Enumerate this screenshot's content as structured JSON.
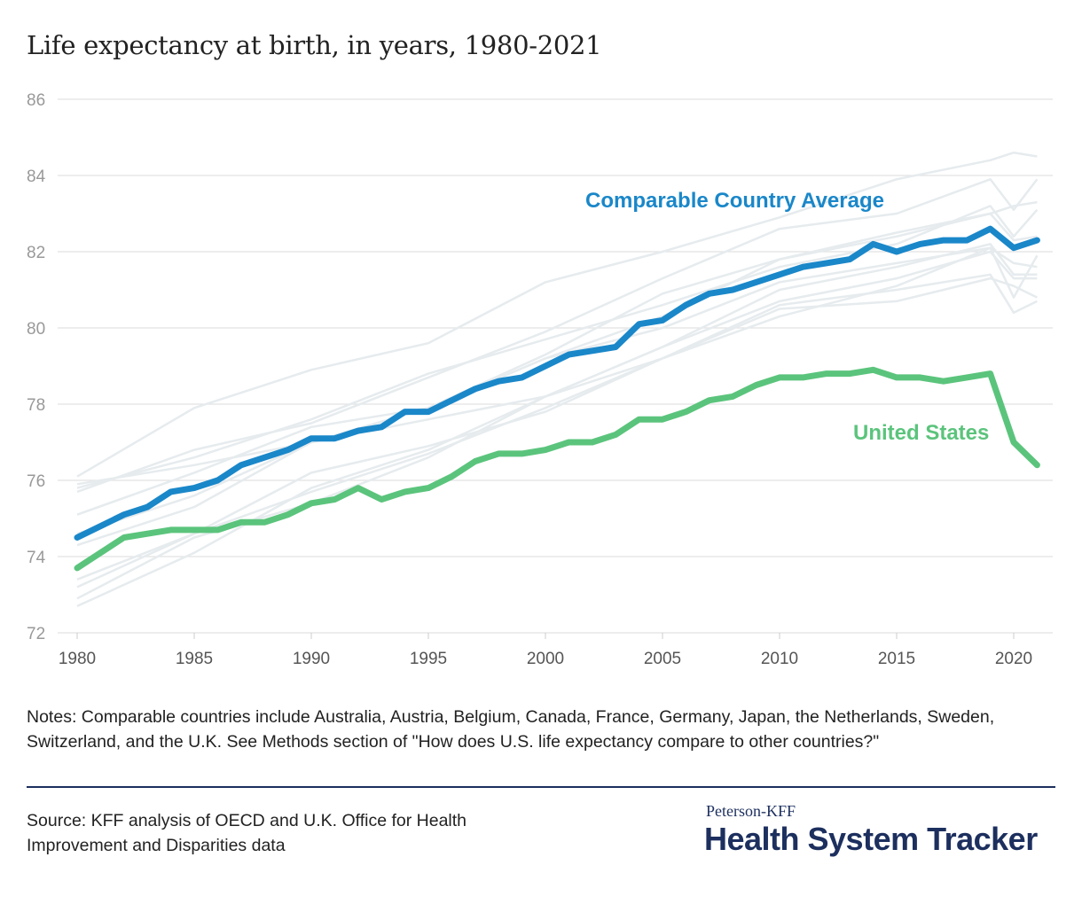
{
  "title": "Life expectancy at birth, in years, 1980-2021",
  "chart_data": {
    "type": "line",
    "title": "Life expectancy at birth, in years, 1980-2021",
    "xlabel": "",
    "ylabel": "",
    "xlim": [
      1980,
      2021
    ],
    "ylim": [
      72,
      86
    ],
    "x_ticks": [
      1980,
      1985,
      1990,
      1995,
      2000,
      2005,
      2010,
      2015,
      2020
    ],
    "y_ticks": [
      72,
      74,
      76,
      78,
      80,
      82,
      84,
      86
    ],
    "grid": true,
    "colors": {
      "comparable": "#1a87c9",
      "us": "#5bc47c",
      "countries": "#e6ebee",
      "grid": "#e2e2e2"
    },
    "x": [
      1980,
      1981,
      1982,
      1983,
      1984,
      1985,
      1986,
      1987,
      1988,
      1989,
      1990,
      1991,
      1992,
      1993,
      1994,
      1995,
      1996,
      1997,
      1998,
      1999,
      2000,
      2001,
      2002,
      2003,
      2004,
      2005,
      2006,
      2007,
      2008,
      2009,
      2010,
      2011,
      2012,
      2013,
      2014,
      2015,
      2016,
      2017,
      2018,
      2019,
      2020,
      2021
    ],
    "series": [
      {
        "name": "Comparable Country Average",
        "values": [
          74.5,
          74.8,
          75.1,
          75.3,
          75.7,
          75.8,
          76.0,
          76.4,
          76.6,
          76.8,
          77.1,
          77.1,
          77.3,
          77.4,
          77.8,
          77.8,
          78.1,
          78.4,
          78.6,
          78.7,
          79.0,
          79.3,
          79.4,
          79.5,
          80.1,
          80.2,
          80.6,
          80.9,
          81.0,
          81.2,
          81.4,
          81.6,
          81.7,
          81.8,
          82.2,
          82.0,
          82.2,
          82.3,
          82.3,
          82.6,
          82.1,
          82.3
        ]
      },
      {
        "name": "United States",
        "values": [
          73.7,
          74.1,
          74.5,
          74.6,
          74.7,
          74.7,
          74.7,
          74.9,
          74.9,
          75.1,
          75.4,
          75.5,
          75.8,
          75.5,
          75.7,
          75.8,
          76.1,
          76.5,
          76.7,
          76.7,
          76.8,
          77.0,
          77.0,
          77.2,
          77.6,
          77.6,
          77.8,
          78.1,
          78.2,
          78.5,
          78.7,
          78.7,
          78.8,
          78.8,
          78.9,
          78.7,
          78.7,
          78.6,
          78.7,
          78.8,
          77.0,
          76.4
        ]
      }
    ],
    "background_series_years": [
      1980,
      1985,
      1990,
      1995,
      2000,
      2005,
      2010,
      2015,
      2019,
      2020,
      2021
    ],
    "background_series": [
      [
        76.1,
        77.9,
        78.9,
        79.6,
        81.2,
        82.0,
        82.9,
        83.9,
        84.4,
        84.6,
        84.5
      ],
      [
        75.7,
        76.8,
        77.5,
        78.7,
        79.9,
        81.3,
        82.6,
        83.0,
        83.9,
        83.1,
        83.9
      ],
      [
        74.6,
        75.6,
        77.0,
        77.9,
        79.3,
        80.9,
        81.8,
        82.5,
        83.0,
        83.2,
        83.3
      ],
      [
        75.8,
        76.6,
        77.6,
        78.8,
        79.7,
        80.6,
        81.6,
        82.2,
        83.2,
        82.4,
        83.1
      ],
      [
        74.3,
        75.3,
        77.0,
        77.9,
        79.2,
        80.3,
        81.8,
        82.4,
        83.0,
        82.3,
        82.4
      ],
      [
        75.1,
        76.2,
        77.4,
        77.9,
        79.2,
        80.0,
        81.2,
        81.7,
        82.1,
        81.7,
        81.6
      ],
      [
        75.9,
        76.4,
        77.0,
        77.6,
        78.2,
        79.5,
        81.0,
        81.6,
        82.2,
        81.4,
        81.4
      ],
      [
        73.4,
        74.6,
        76.2,
        76.9,
        77.8,
        79.2,
        80.3,
        81.1,
        82.1,
        80.8,
        81.9
      ],
      [
        72.7,
        74.1,
        75.8,
        76.8,
        78.2,
        79.5,
        80.7,
        81.3,
        82.0,
        81.3,
        81.3
      ],
      [
        72.9,
        74.5,
        75.4,
        76.6,
        78.2,
        79.2,
        80.5,
        80.7,
        81.3,
        81.1,
        80.8
      ],
      [
        73.2,
        74.6,
        75.7,
        76.7,
        77.9,
        79.2,
        80.6,
        81.0,
        81.4,
        80.4,
        80.7
      ]
    ],
    "annotations": [
      "Comparable Country Average",
      "United States"
    ]
  },
  "notes": "Notes: Comparable countries include Australia, Austria, Belgium, Canada, France, Germany, Japan, the Netherlands, Sweden, Switzerland, and the U.K. See Methods section of \"How does U.S. life expectancy compare to other countries?\"",
  "source": "Source: KFF analysis of OECD and U.K. Office for Health Improvement and Disparities data",
  "logo": {
    "top": "Peterson-KFF",
    "main": "Health System Tracker"
  }
}
